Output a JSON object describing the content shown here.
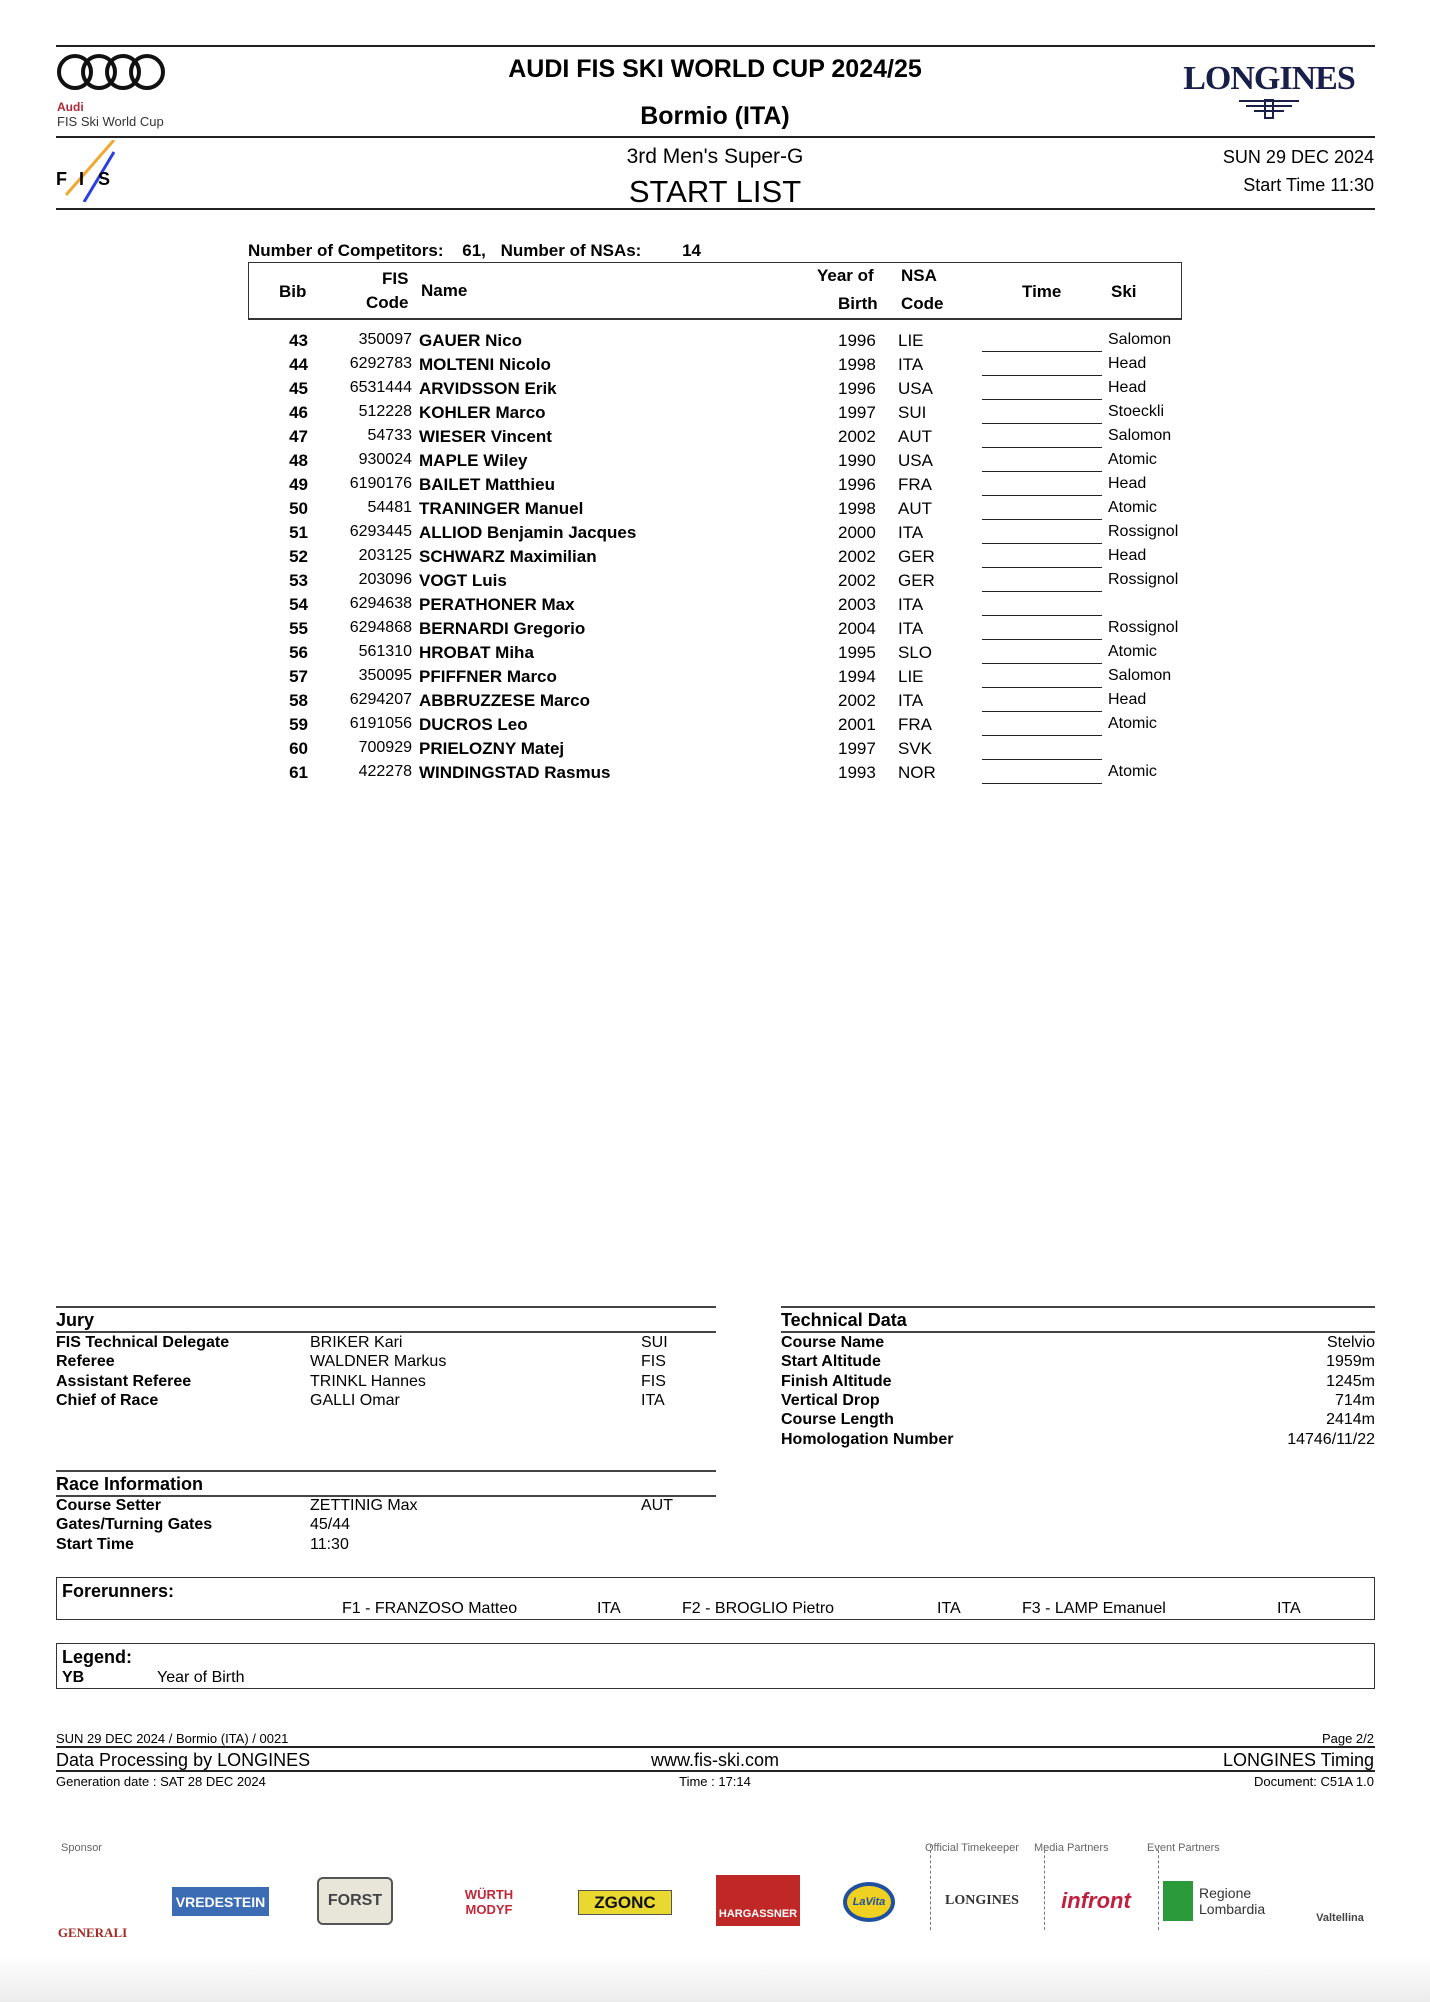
{
  "header": {
    "title": "AUDI FIS SKI WORLD CUP 2024/25",
    "venue": "Bormio (ITA)",
    "event": "3rd Men's Super-G",
    "doc_type": "START LIST",
    "date": "SUN 29 DEC 2024",
    "start_time": "Start Time 11:30",
    "audi_logo": {
      "brand": "Audi",
      "sub": "FIS Ski World Cup"
    },
    "longines_logo": "LONGINES",
    "fis_logo": "FIS"
  },
  "summary": {
    "competitors_label": "Number of Competitors:",
    "competitors": "61,",
    "nsas_label": "Number of NSAs:",
    "nsas": "14"
  },
  "columns": {
    "bib": "Bib",
    "fis_code_1": "FIS",
    "fis_code_2": "Code",
    "name": "Name",
    "yob_1": "Year of",
    "yob_2": "Birth",
    "nsa_1": "NSA",
    "nsa_2": "Code",
    "time": "Time",
    "ski": "Ski"
  },
  "rows": [
    {
      "bib": "43",
      "code": "350097",
      "name": "GAUER Nico",
      "yb": "1996",
      "nsa": "LIE",
      "ski": "Salomon"
    },
    {
      "bib": "44",
      "code": "6292783",
      "name": "MOLTENI Nicolo",
      "yb": "1998",
      "nsa": "ITA",
      "ski": "Head"
    },
    {
      "bib": "45",
      "code": "6531444",
      "name": "ARVIDSSON Erik",
      "yb": "1996",
      "nsa": "USA",
      "ski": "Head"
    },
    {
      "bib": "46",
      "code": "512228",
      "name": "KOHLER Marco",
      "yb": "1997",
      "nsa": "SUI",
      "ski": "Stoeckli"
    },
    {
      "bib": "47",
      "code": "54733",
      "name": "WIESER Vincent",
      "yb": "2002",
      "nsa": "AUT",
      "ski": "Salomon"
    },
    {
      "bib": "48",
      "code": "930024",
      "name": "MAPLE Wiley",
      "yb": "1990",
      "nsa": "USA",
      "ski": "Atomic"
    },
    {
      "bib": "49",
      "code": "6190176",
      "name": "BAILET Matthieu",
      "yb": "1996",
      "nsa": "FRA",
      "ski": "Head"
    },
    {
      "bib": "50",
      "code": "54481",
      "name": "TRANINGER Manuel",
      "yb": "1998",
      "nsa": "AUT",
      "ski": "Atomic"
    },
    {
      "bib": "51",
      "code": "6293445",
      "name": "ALLIOD Benjamin Jacques",
      "yb": "2000",
      "nsa": "ITA",
      "ski": "Rossignol"
    },
    {
      "bib": "52",
      "code": "203125",
      "name": "SCHWARZ Maximilian",
      "yb": "2002",
      "nsa": "GER",
      "ski": "Head"
    },
    {
      "bib": "53",
      "code": "203096",
      "name": "VOGT Luis",
      "yb": "2002",
      "nsa": "GER",
      "ski": "Rossignol"
    },
    {
      "bib": "54",
      "code": "6294638",
      "name": "PERATHONER Max",
      "yb": "2003",
      "nsa": "ITA",
      "ski": ""
    },
    {
      "bib": "55",
      "code": "6294868",
      "name": "BERNARDI Gregorio",
      "yb": "2004",
      "nsa": "ITA",
      "ski": "Rossignol"
    },
    {
      "bib": "56",
      "code": "561310",
      "name": "HROBAT Miha",
      "yb": "1995",
      "nsa": "SLO",
      "ski": "Atomic"
    },
    {
      "bib": "57",
      "code": "350095",
      "name": "PFIFFNER Marco",
      "yb": "1994",
      "nsa": "LIE",
      "ski": "Salomon"
    },
    {
      "bib": "58",
      "code": "6294207",
      "name": "ABBRUZZESE Marco",
      "yb": "2002",
      "nsa": "ITA",
      "ski": "Head"
    },
    {
      "bib": "59",
      "code": "6191056",
      "name": "DUCROS Leo",
      "yb": "2001",
      "nsa": "FRA",
      "ski": "Atomic"
    },
    {
      "bib": "60",
      "code": "700929",
      "name": "PRIELOZNY Matej",
      "yb": "1997",
      "nsa": "SVK",
      "ski": ""
    },
    {
      "bib": "61",
      "code": "422278",
      "name": "WINDINGSTAD Rasmus",
      "yb": "1993",
      "nsa": "NOR",
      "ski": "Atomic"
    }
  ],
  "jury": {
    "title": "Jury",
    "items": [
      {
        "role": "FIS Technical Delegate",
        "name": "BRIKER Kari",
        "nat": "SUI"
      },
      {
        "role": "Referee",
        "name": "WALDNER Markus",
        "nat": "FIS"
      },
      {
        "role": "Assistant Referee",
        "name": "TRINKL Hannes",
        "nat": "FIS"
      },
      {
        "role": "Chief of Race",
        "name": "GALLI Omar",
        "nat": "ITA"
      }
    ]
  },
  "technical": {
    "title": "Technical Data",
    "items": [
      {
        "label": "Course Name",
        "value": "Stelvio"
      },
      {
        "label": "Start Altitude",
        "value": "1959m"
      },
      {
        "label": "Finish Altitude",
        "value": "1245m"
      },
      {
        "label": "Vertical Drop",
        "value": "714m"
      },
      {
        "label": "Course Length",
        "value": "2414m"
      },
      {
        "label": "Homologation Number",
        "value": "14746/11/22"
      }
    ]
  },
  "race_info": {
    "title": "Race Information",
    "items": [
      {
        "label": "Course Setter",
        "value": "ZETTINIG Max",
        "nat": "AUT"
      },
      {
        "label": "Gates/Turning Gates",
        "value": "45/44",
        "nat": ""
      },
      {
        "label": "Start Time",
        "value": "11:30",
        "nat": ""
      }
    ]
  },
  "forerunners": {
    "title": "Forerunners:",
    "items": [
      {
        "name": "F1 - FRANZOSO Matteo",
        "nat": "ITA"
      },
      {
        "name": "F2 - BROGLIO Pietro",
        "nat": "ITA"
      },
      {
        "name": "F3 - LAMP Emanuel",
        "nat": "ITA"
      }
    ]
  },
  "legend": {
    "title": "Legend:",
    "abbr": "YB",
    "meaning": "Year of Birth"
  },
  "footer": {
    "ref": "SUN 29 DEC 2024 / Bormio (ITA) / 0021",
    "page": "Page 2/2",
    "processing": "Data Processing by LONGINES",
    "website": "www.fis-ski.com",
    "timing": "LONGINES Timing",
    "generation": "Generation date : SAT 28 DEC 2024",
    "time": "Time : 17:14",
    "document": "Document: C51A 1.0"
  },
  "sponsors": {
    "label_sponsor": "Sponsor",
    "label_timekeeper": "Official Timekeeper",
    "label_media": "Media Partners",
    "label_event": "Event Partners",
    "logos": [
      "GENERALI",
      "VREDESTEIN",
      "FORST",
      "WÜRTH MODYF",
      "ZGONC",
      "HARGASSNER",
      "LaVita",
      "LONGINES",
      "infront",
      "Regione Lombardia",
      "Valtellina"
    ]
  }
}
